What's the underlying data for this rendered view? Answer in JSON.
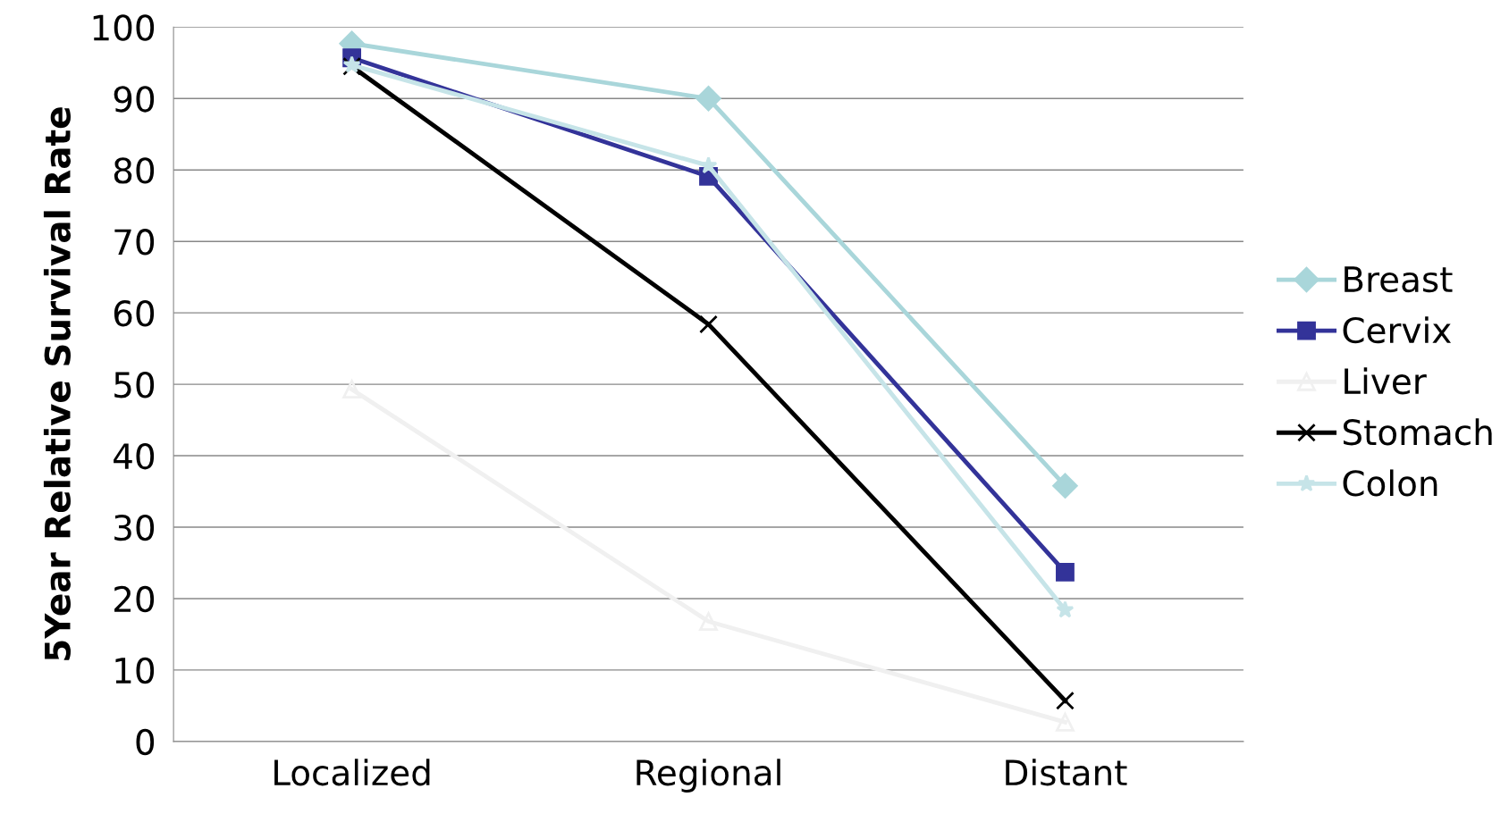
{
  "chart_data": {
    "type": "line",
    "ylabel": "5Year Relative Survival Rate",
    "categories": [
      "Localized",
      "Regional",
      "Distant"
    ],
    "ylim": [
      0,
      100
    ],
    "yticks": [
      0,
      10,
      20,
      30,
      40,
      50,
      60,
      70,
      80,
      90,
      100
    ],
    "grid": "y",
    "legend": "right",
    "line_style": "solid",
    "series": [
      {
        "name": "Breast",
        "color": "#a9d6da",
        "marker": "diamond",
        "values": [
          97.7,
          90,
          35.8
        ]
      },
      {
        "name": "Cervix",
        "color": "#333399",
        "marker": "square",
        "values": [
          95.7,
          79.1,
          23.7
        ]
      },
      {
        "name": "Liver",
        "color": "#f0f0f0",
        "marker": "triangle",
        "values": [
          49.3,
          16.8,
          2.7
        ]
      },
      {
        "name": "Stomach",
        "color": "#000000",
        "marker": "cross",
        "values": [
          94.5,
          58.4,
          5.7
        ]
      },
      {
        "name": "Colon",
        "color": "#c6e4e8",
        "marker": "star",
        "values": [
          94.7,
          80.6,
          18.4
        ]
      }
    ]
  }
}
